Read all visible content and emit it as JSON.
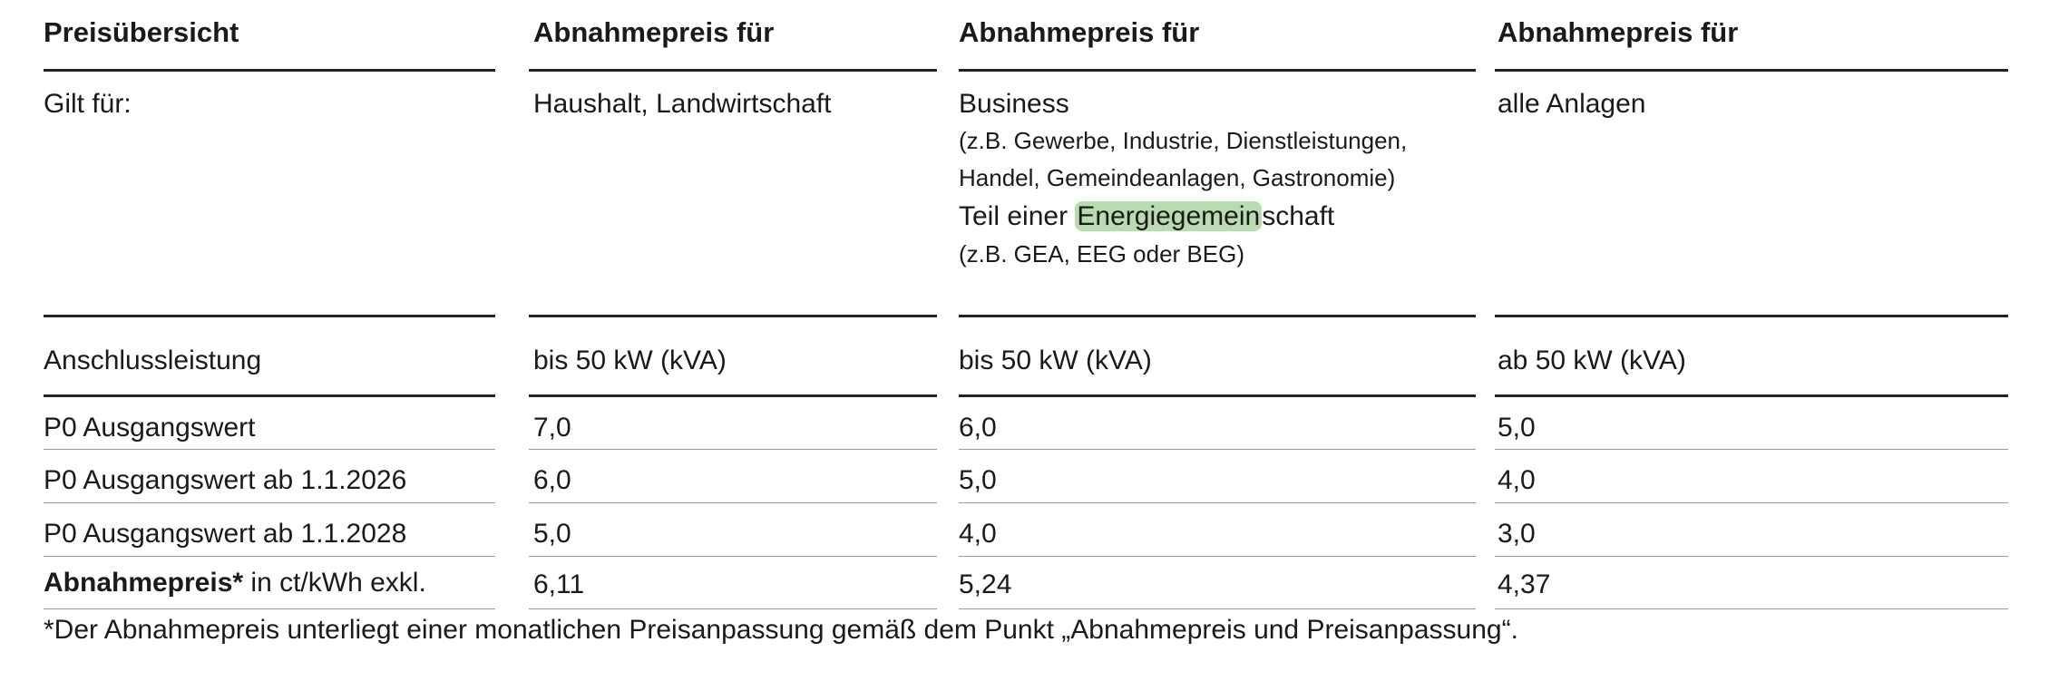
{
  "headers": [
    "Preisübersicht",
    "Abnahmepreis für",
    "Abnahmepreis für",
    "Abnahmepreis für"
  ],
  "gilt_label": "Gilt für:",
  "col2_applies": "Haushalt, Landwirtschaft",
  "col3_applies": {
    "line1": "Business",
    "line2": "(z.B. Gewerbe, Industrie, Dienstleistungen,",
    "line3": "Handel, Gemeindeanlagen, Gastronomie)",
    "line4_pre": "Teil einer ",
    "line4_hl": "Energiegemein",
    "line4_post": "schaft",
    "line5": "(z.B. GEA, EEG oder BEG)"
  },
  "col4_applies": "alle Anlagen",
  "rows": [
    {
      "label": "Anschlussleistung",
      "v1": "bis 50 kW (kVA)",
      "v2": "bis 50 kW (kVA)",
      "v3": "ab 50 kW (kVA)"
    },
    {
      "label": "P0 Ausgangswert",
      "v1": "7,0",
      "v2": "6,0",
      "v3": "5,0"
    },
    {
      "label": "P0 Ausgangswert ab 1.1.2026",
      "v1": "6,0",
      "v2": "5,0",
      "v3": "4,0"
    },
    {
      "label": "P0 Ausgangswert ab 1.1.2028",
      "v1": "5,0",
      "v2": "4,0",
      "v3": "3,0"
    }
  ],
  "price_row": {
    "label_bold": "Abnahmepreis*",
    "label_rest": " in ct/kWh exkl.",
    "v1": "6,11",
    "v2": "5,24",
    "v3": "4,37"
  },
  "footnote": "*Der Abnahmepreis unterliegt einer monatlichen Preisanpassung gemäß dem Punkt „Abnahmepreis und Preisanpassung“."
}
